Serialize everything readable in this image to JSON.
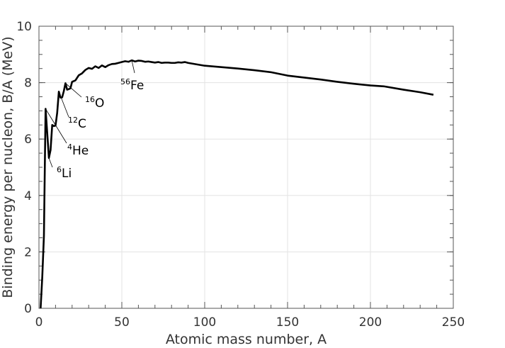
{
  "chart_data": {
    "type": "line",
    "title": "",
    "xlabel": "Atomic mass number, A",
    "ylabel": "Binding energy per nucleon, B/A (MeV)",
    "xlim": [
      0,
      250
    ],
    "ylim": [
      0,
      10
    ],
    "xticks": [
      0,
      50,
      100,
      150,
      200,
      250
    ],
    "yticks": [
      0,
      2,
      4,
      6,
      8,
      10
    ],
    "grid": true,
    "series": [
      {
        "name": "",
        "color": "#000000",
        "x": [
          1,
          2,
          3,
          4,
          6,
          7,
          8,
          9,
          10,
          11,
          12,
          13,
          14,
          15,
          16,
          17,
          18,
          19,
          20,
          22,
          24,
          26,
          28,
          30,
          32,
          34,
          36,
          38,
          40,
          42,
          44,
          46,
          48,
          50,
          52,
          54,
          56,
          58,
          60,
          62,
          64,
          66,
          68,
          70,
          72,
          74,
          76,
          78,
          80,
          82,
          84,
          86,
          88,
          90,
          100,
          110,
          120,
          130,
          140,
          150,
          160,
          170,
          180,
          190,
          200,
          208,
          220,
          230,
          238
        ],
        "y": [
          0.0,
          1.11,
          2.57,
          7.07,
          5.33,
          5.61,
          6.5,
          6.46,
          6.48,
          6.93,
          7.68,
          7.47,
          7.48,
          7.7,
          7.98,
          7.75,
          7.77,
          7.8,
          8.03,
          8.08,
          8.26,
          8.33,
          8.45,
          8.52,
          8.49,
          8.58,
          8.52,
          8.61,
          8.55,
          8.62,
          8.66,
          8.67,
          8.7,
          8.73,
          8.76,
          8.74,
          8.79,
          8.75,
          8.78,
          8.77,
          8.74,
          8.75,
          8.73,
          8.71,
          8.73,
          8.7,
          8.71,
          8.71,
          8.7,
          8.7,
          8.72,
          8.71,
          8.73,
          8.7,
          8.6,
          8.55,
          8.5,
          8.44,
          8.37,
          8.25,
          8.18,
          8.11,
          8.03,
          7.96,
          7.9,
          7.87,
          7.75,
          7.66,
          7.57
        ]
      }
    ],
    "annotations": [
      {
        "sup": "6",
        "label": "Li",
        "x": 6,
        "y": 5.33
      },
      {
        "sup": "4",
        "label": "He",
        "x": 4,
        "y": 7.07
      },
      {
        "sup": "12",
        "label": "C",
        "x": 12,
        "y": 7.68
      },
      {
        "sup": "16",
        "label": "O",
        "x": 16,
        "y": 7.98
      },
      {
        "sup": "56",
        "label": "Fe",
        "x": 56,
        "y": 8.79
      }
    ]
  }
}
